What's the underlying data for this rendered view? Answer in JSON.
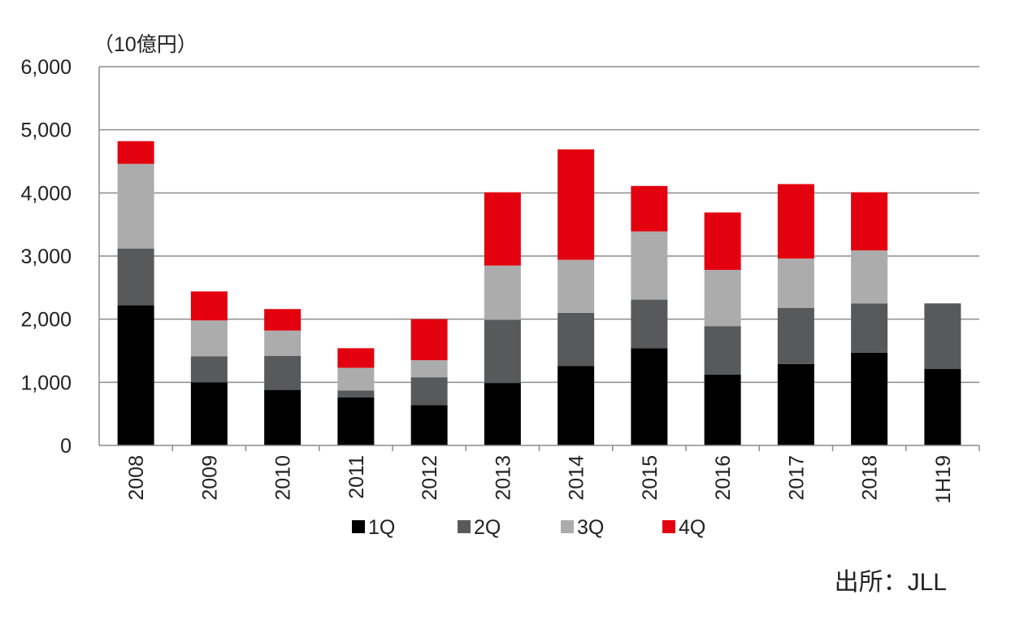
{
  "chart_data": {
    "type": "bar",
    "stacked": true,
    "unit_label": "（10億円）",
    "categories": [
      "2008",
      "2009",
      "2010",
      "2011",
      "2012",
      "2013",
      "2014",
      "2015",
      "2016",
      "2017",
      "2018",
      "1H19"
    ],
    "series": [
      {
        "name": "1Q",
        "color": "#000000",
        "values": [
          2220,
          1000,
          880,
          760,
          640,
          990,
          1260,
          1540,
          1120,
          1290,
          1470,
          1210
        ]
      },
      {
        "name": "2Q",
        "color": "#58595b",
        "values": [
          900,
          410,
          540,
          110,
          440,
          1000,
          840,
          770,
          770,
          890,
          780,
          1040
        ]
      },
      {
        "name": "3Q",
        "color": "#acacac",
        "values": [
          1340,
          570,
          400,
          360,
          270,
          860,
          840,
          1080,
          890,
          780,
          840,
          null
        ]
      },
      {
        "name": "4Q",
        "color": "#e3000f",
        "values": [
          360,
          460,
          340,
          310,
          650,
          1160,
          1750,
          720,
          910,
          1180,
          920,
          null
        ]
      }
    ],
    "ylim": [
      0,
      6000
    ],
    "yticks": [
      "0",
      "1,000",
      "2,000",
      "3,000",
      "4,000",
      "5,000",
      "6,000"
    ],
    "ytick_values": [
      0,
      1000,
      2000,
      3000,
      4000,
      5000,
      6000
    ],
    "grid": true,
    "legend_position": "bottom",
    "source": "出所：JLL"
  }
}
